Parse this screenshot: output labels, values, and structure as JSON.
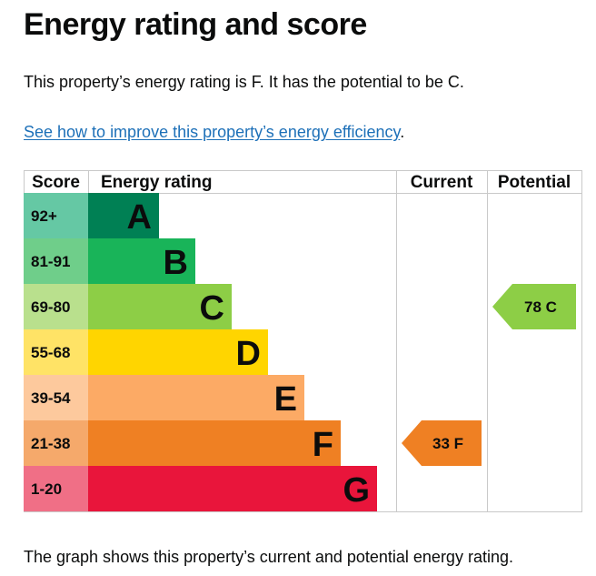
{
  "page": {
    "title": "Energy rating and score",
    "rating_sentence": "This property’s energy rating is F. It has the potential to be C.",
    "improve_link": "See how to improve this property’s energy efficiency",
    "improve_link_suffix": ".",
    "footer": "The graph shows this property’s current and potential energy rating."
  },
  "chart_data": {
    "type": "bar",
    "columns": {
      "score": "Score",
      "rating": "Energy rating",
      "current": "Current",
      "potential": "Potential"
    },
    "bands": [
      {
        "range": "92+",
        "letter": "A",
        "color": "#008054",
        "score_color": "#65c8a4"
      },
      {
        "range": "81-91",
        "letter": "B",
        "color": "#19b459",
        "score_color": "#6fce8a"
      },
      {
        "range": "69-80",
        "letter": "C",
        "color": "#8dce46",
        "score_color": "#b9e08d"
      },
      {
        "range": "55-68",
        "letter": "D",
        "color": "#ffd500",
        "score_color": "#ffe366"
      },
      {
        "range": "39-54",
        "letter": "E",
        "color": "#fcaa65",
        "score_color": "#fdc99d"
      },
      {
        "range": "21-38",
        "letter": "F",
        "color": "#ef8023",
        "score_color": "#f5a96b"
      },
      {
        "range": "1-20",
        "letter": "G",
        "color": "#e9153b",
        "score_color": "#f06f86"
      }
    ],
    "current": {
      "score": 33,
      "letter": "F",
      "label": "33 F",
      "color": "#ef8023"
    },
    "potential": {
      "score": 78,
      "letter": "C",
      "label": "78 C",
      "color": "#8dce46"
    }
  }
}
